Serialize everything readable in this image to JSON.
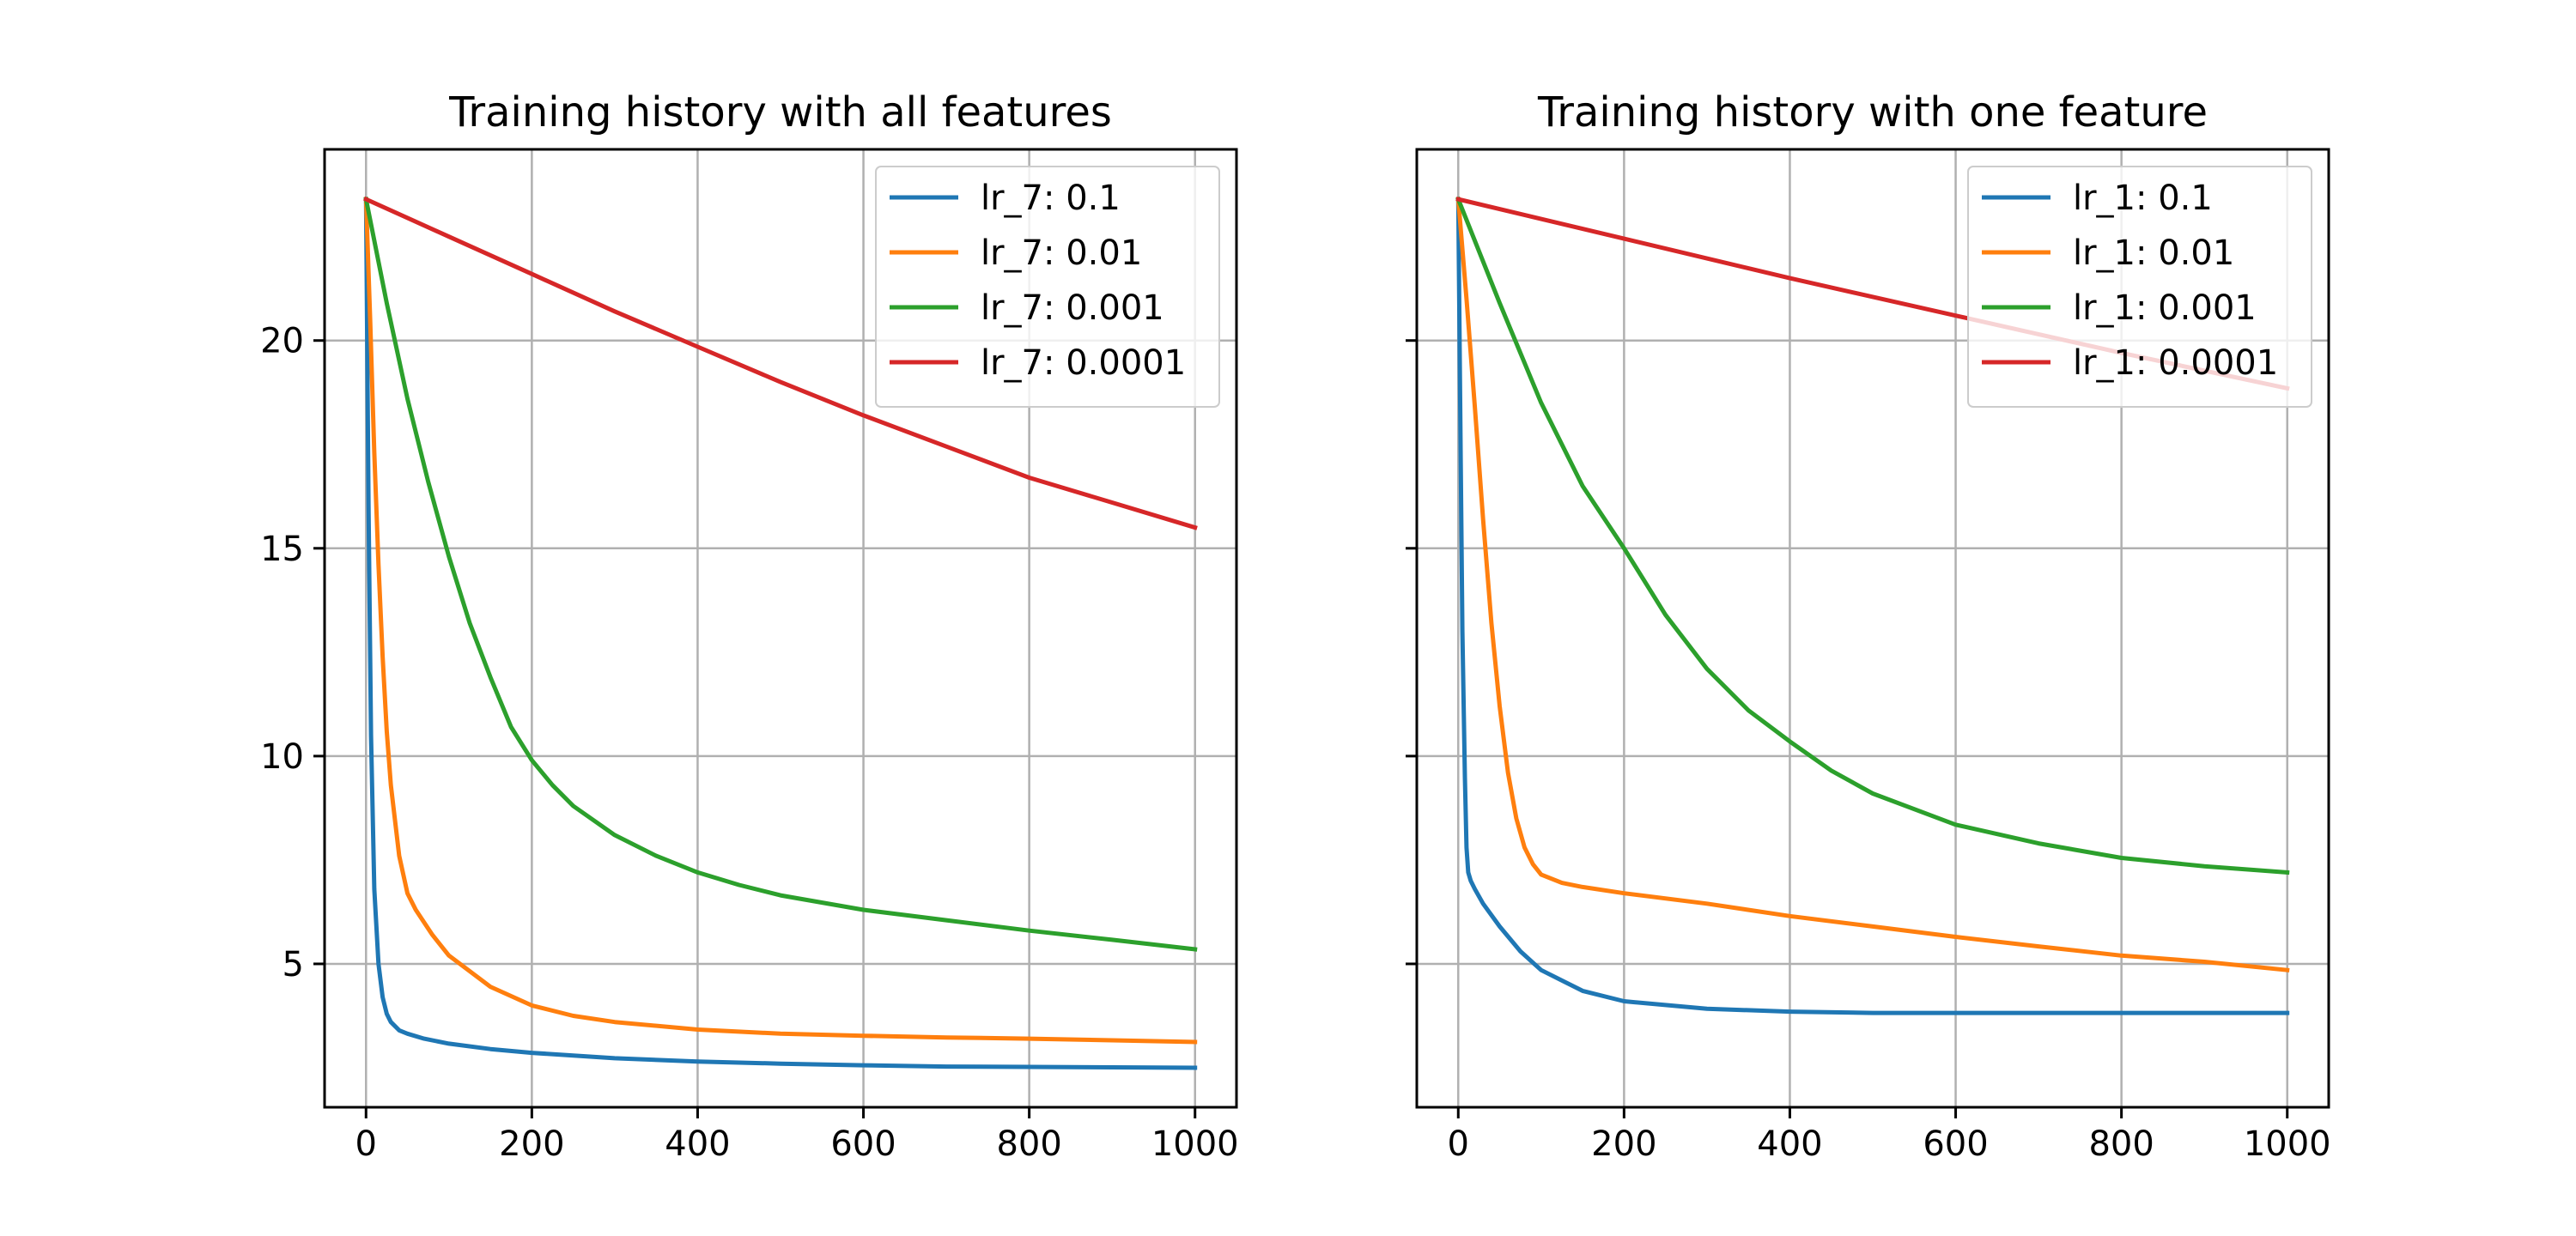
{
  "chart_data": [
    {
      "type": "line",
      "title": "Training history with all features",
      "xlabel": "",
      "ylabel": "",
      "xlim": [
        -50,
        1050
      ],
      "ylim": [
        1.55,
        24.6
      ],
      "xticks": [
        0,
        200,
        400,
        600,
        800,
        1000
      ],
      "yticks": [
        5,
        10,
        15,
        20
      ],
      "show_ytick_labels": true,
      "grid": true,
      "legend_position": "top-right",
      "series": [
        {
          "name": "lr_7: 0.1",
          "color": "#1f77b4",
          "x": [
            0,
            3,
            6,
            10,
            15,
            20,
            25,
            30,
            40,
            50,
            70,
            100,
            150,
            200,
            300,
            400,
            500,
            600,
            700,
            800,
            900,
            1000
          ],
          "y": [
            23.4,
            16.0,
            10.5,
            6.8,
            5.0,
            4.2,
            3.8,
            3.6,
            3.4,
            3.32,
            3.2,
            3.08,
            2.95,
            2.86,
            2.73,
            2.65,
            2.6,
            2.56,
            2.53,
            2.52,
            2.51,
            2.5
          ]
        },
        {
          "name": "lr_7: 0.01",
          "color": "#ff7f0e",
          "x": [
            0,
            5,
            10,
            15,
            20,
            25,
            30,
            40,
            50,
            60,
            80,
            100,
            150,
            200,
            250,
            300,
            400,
            500,
            600,
            700,
            800,
            900,
            1000
          ],
          "y": [
            23.4,
            20.5,
            17.3,
            14.6,
            12.4,
            10.6,
            9.3,
            7.6,
            6.7,
            6.3,
            5.7,
            5.2,
            4.45,
            4.0,
            3.75,
            3.6,
            3.42,
            3.32,
            3.27,
            3.23,
            3.2,
            3.16,
            3.12
          ]
        },
        {
          "name": "lr_7: 0.001",
          "color": "#2ca02c",
          "x": [
            0,
            25,
            50,
            75,
            100,
            125,
            150,
            175,
            200,
            225,
            250,
            300,
            350,
            400,
            450,
            500,
            600,
            700,
            800,
            900,
            1000
          ],
          "y": [
            23.4,
            20.9,
            18.6,
            16.6,
            14.8,
            13.2,
            11.9,
            10.7,
            9.9,
            9.3,
            8.8,
            8.1,
            7.6,
            7.2,
            6.9,
            6.65,
            6.3,
            6.05,
            5.8,
            5.58,
            5.35
          ]
        },
        {
          "name": "lr_7: 0.0001",
          "color": "#d62728",
          "x": [
            0,
            100,
            200,
            300,
            400,
            500,
            600,
            700,
            800,
            900,
            1000
          ],
          "y": [
            23.4,
            22.5,
            21.6,
            20.7,
            19.85,
            19.0,
            18.2,
            17.45,
            16.7,
            16.1,
            15.5
          ]
        }
      ]
    },
    {
      "type": "line",
      "title": "Training history with one feature",
      "xlabel": "",
      "ylabel": "",
      "xlim": [
        -50,
        1050
      ],
      "ylim": [
        1.55,
        24.6
      ],
      "xticks": [
        0,
        200,
        400,
        600,
        800,
        1000
      ],
      "yticks": [
        5,
        10,
        15,
        20
      ],
      "show_ytick_labels": false,
      "grid": true,
      "legend_position": "top-right",
      "series": [
        {
          "name": "lr_1: 0.1",
          "color": "#1f77b4",
          "x": [
            0,
            3,
            5,
            8,
            10,
            12,
            15,
            20,
            30,
            50,
            75,
            100,
            150,
            200,
            300,
            400,
            500,
            600,
            700,
            800,
            900,
            1000
          ],
          "y": [
            23.4,
            17.0,
            13.0,
            9.5,
            7.8,
            7.2,
            7.0,
            6.8,
            6.45,
            5.9,
            5.3,
            4.85,
            4.35,
            4.1,
            3.92,
            3.85,
            3.82,
            3.82,
            3.82,
            3.82,
            3.82,
            3.82
          ]
        },
        {
          "name": "lr_1: 0.01",
          "color": "#ff7f0e",
          "x": [
            0,
            10,
            20,
            30,
            40,
            50,
            60,
            70,
            80,
            90,
            100,
            125,
            150,
            200,
            300,
            400,
            500,
            600,
            700,
            800,
            900,
            1000
          ],
          "y": [
            23.4,
            21.0,
            18.4,
            15.7,
            13.2,
            11.2,
            9.6,
            8.5,
            7.8,
            7.4,
            7.15,
            6.95,
            6.85,
            6.7,
            6.45,
            6.15,
            5.9,
            5.65,
            5.42,
            5.2,
            5.05,
            4.85
          ]
        },
        {
          "name": "lr_1: 0.001",
          "color": "#2ca02c",
          "x": [
            0,
            50,
            100,
            150,
            200,
            250,
            300,
            350,
            400,
            450,
            500,
            600,
            700,
            800,
            900,
            1000
          ],
          "y": [
            23.4,
            20.9,
            18.5,
            16.5,
            15.0,
            13.4,
            12.1,
            11.1,
            10.35,
            9.65,
            9.1,
            8.35,
            7.9,
            7.55,
            7.35,
            7.2
          ]
        },
        {
          "name": "lr_1: 0.0001",
          "color": "#d62728",
          "x": [
            0,
            200,
            400,
            600,
            800,
            1000
          ],
          "y": [
            23.4,
            22.45,
            21.5,
            20.6,
            19.7,
            18.85
          ]
        }
      ]
    }
  ]
}
